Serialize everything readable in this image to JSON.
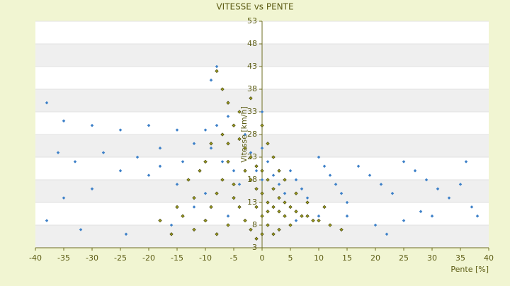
{
  "chart_data": {
    "type": "scatter",
    "title": "VITESSE vs PENTE",
    "x_label": "Pente [%]",
    "y_label": "Vitesse [km/h]",
    "xlim": [
      -40,
      40
    ],
    "xticks": [
      -40,
      -35,
      -30,
      -25,
      -20,
      -15,
      -10,
      -5,
      0,
      5,
      10,
      15,
      20,
      25,
      30,
      35,
      40
    ],
    "ylim": [
      3,
      53
    ],
    "yticks": [
      3,
      8,
      13,
      18,
      23,
      28,
      33,
      38,
      43,
      48,
      53
    ],
    "grid": true,
    "series": [
      {
        "color": "#3d80c8",
        "x": [
          -38,
          -35,
          -30,
          -25,
          -20,
          -15,
          -36,
          -33,
          -28,
          -22,
          -18,
          -12,
          -10,
          -8,
          -6,
          -9,
          -7,
          -5,
          -4,
          -3,
          -2,
          -1,
          0,
          0,
          0,
          1,
          2,
          3,
          4,
          5,
          6,
          7,
          8,
          10,
          11,
          12,
          13,
          14,
          15,
          17,
          19,
          21,
          23,
          25,
          27,
          29,
          31,
          33,
          35,
          37,
          38,
          30,
          25,
          20,
          15,
          10,
          -10,
          -15,
          -20,
          -25,
          -30,
          -35,
          -38,
          -32,
          -24,
          -16,
          -8,
          -9,
          -14,
          -18,
          22,
          28,
          36,
          -12,
          -6,
          6
        ],
        "values": [
          35,
          31,
          30,
          29,
          30,
          29,
          24,
          22,
          24,
          23,
          25,
          26,
          29,
          30,
          32,
          25,
          22,
          20,
          17,
          28,
          24,
          20,
          33,
          25,
          18,
          22,
          19,
          17,
          15,
          20,
          18,
          16,
          14,
          23,
          21,
          19,
          17,
          15,
          13,
          21,
          19,
          17,
          15,
          22,
          20,
          18,
          16,
          14,
          17,
          12,
          10,
          10,
          9,
          8,
          10,
          10,
          15,
          17,
          19,
          20,
          16,
          14,
          9,
          7,
          6,
          8,
          43,
          40,
          22,
          21,
          6,
          11,
          22,
          12,
          10,
          9
        ]
      },
      {
        "color": "#9a9a1e",
        "x": [
          -8,
          -7,
          -6,
          -5,
          -4,
          -3,
          -2,
          -1,
          0,
          1,
          2,
          3,
          4,
          5,
          6,
          7,
          8,
          9,
          10,
          12,
          14,
          -3,
          -2,
          -1,
          0,
          1,
          2,
          3,
          4,
          -6,
          -7,
          -8,
          -9,
          -10,
          -12,
          -14,
          -16,
          -5,
          -4,
          -3,
          -2,
          -1,
          0,
          1,
          2,
          3,
          5,
          -11,
          -9,
          -7,
          -4,
          -2,
          -6,
          -8,
          -12,
          -15,
          -18,
          0,
          1,
          2,
          3,
          4,
          6,
          8,
          11,
          -5,
          -6,
          -10,
          -13,
          0,
          1,
          -1
        ],
        "values": [
          42,
          38,
          35,
          30,
          27,
          25,
          23,
          21,
          20,
          18,
          16,
          14,
          13,
          12,
          11,
          10,
          10,
          9,
          9,
          8,
          7,
          20,
          18,
          16,
          15,
          13,
          12,
          11,
          10,
          22,
          18,
          15,
          12,
          9,
          7,
          10,
          6,
          14,
          12,
          9,
          7,
          5,
          6,
          8,
          6,
          7,
          8,
          20,
          26,
          28,
          33,
          36,
          8,
          6,
          14,
          12,
          9,
          30,
          26,
          23,
          20,
          18,
          15,
          13,
          12,
          17,
          26,
          22,
          18,
          10,
          11,
          12
        ]
      }
    ]
  }
}
